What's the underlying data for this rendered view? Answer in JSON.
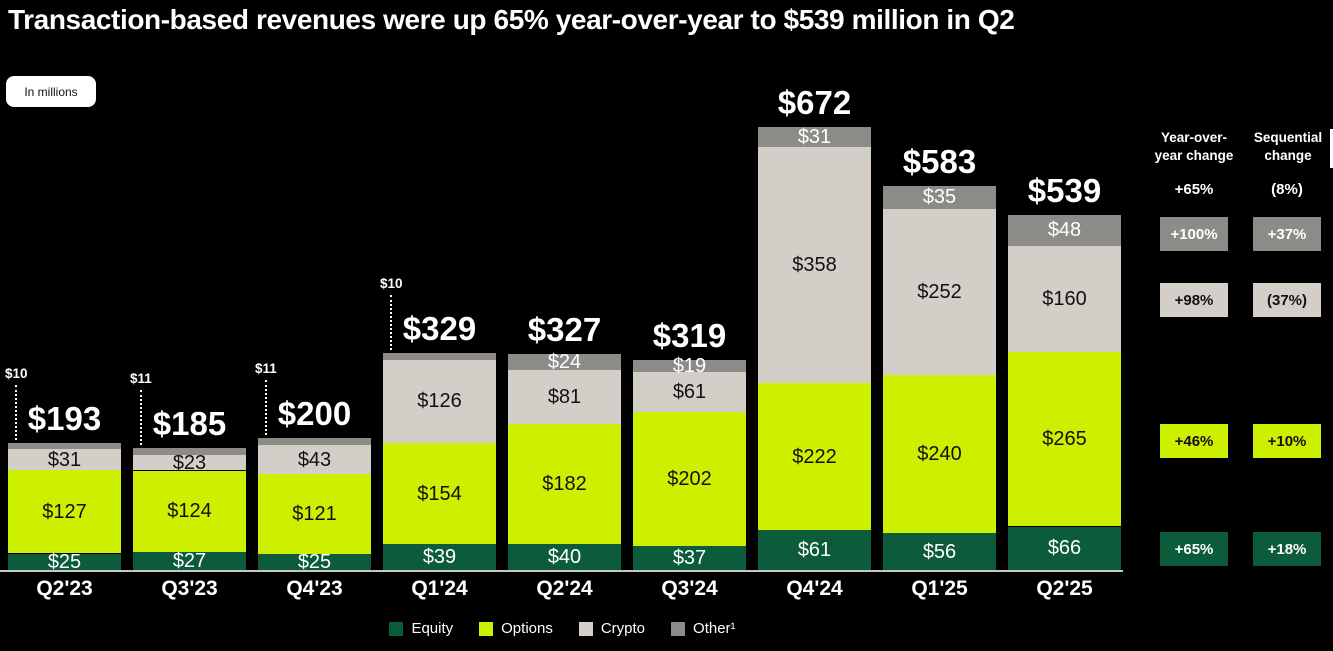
{
  "header": {
    "title": "Transaction-based revenues were up 65% year-over-year to $539 million in Q2",
    "units_label": "In millions"
  },
  "colors": {
    "background": "#000000",
    "equity": "#0c5c3c",
    "options": "#cdf000",
    "crypto": "#d3cfc8",
    "other": "#8c8b88",
    "baseline": "#c6c6c6",
    "text_light": "#ffffff",
    "text_dark": "#111111"
  },
  "chart_data": {
    "type": "bar",
    "stacked": true,
    "units": "USD millions",
    "categories": [
      "Q2'23",
      "Q3'23",
      "Q4'23",
      "Q1'24",
      "Q2'24",
      "Q3'24",
      "Q4'24",
      "Q1'25",
      "Q2'25"
    ],
    "series": [
      {
        "name": "Equity",
        "color_key": "equity",
        "label_color": "#ffffff",
        "values": [
          25,
          27,
          25,
          39,
          40,
          37,
          61,
          56,
          66
        ]
      },
      {
        "name": "Options",
        "color_key": "options",
        "label_color": "#111111",
        "values": [
          127,
          124,
          121,
          154,
          182,
          202,
          222,
          240,
          265
        ]
      },
      {
        "name": "Crypto",
        "color_key": "crypto",
        "label_color": "#111111",
        "values": [
          31,
          23,
          43,
          126,
          81,
          61,
          358,
          252,
          160
        ]
      },
      {
        "name": "Other",
        "color_key": "other",
        "label_color": "#ffffff",
        "values": [
          10,
          11,
          11,
          10,
          24,
          19,
          31,
          35,
          48
        ]
      }
    ],
    "totals": [
      "$193",
      "$185",
      "$200",
      "$329",
      "$327",
      "$319",
      "$672",
      "$583",
      "$539"
    ],
    "other_as_callout": [
      true,
      true,
      true,
      true,
      false,
      false,
      false,
      false,
      false
    ],
    "ylim": [
      0,
      672
    ],
    "grid": false,
    "legend_position": "bottom"
  },
  "legend": {
    "items": [
      {
        "label": "Equity",
        "color_key": "equity"
      },
      {
        "label": "Options",
        "color_key": "options"
      },
      {
        "label": "Crypto",
        "color_key": "crypto"
      },
      {
        "label": "Other¹",
        "color_key": "other"
      }
    ]
  },
  "changes": {
    "columns": [
      {
        "header": "Year-over-\nyear change",
        "headline": "+65%"
      },
      {
        "header": "Sequential\nchange",
        "headline": "(8%)"
      }
    ],
    "rows": [
      {
        "segment": "Other",
        "color_key": "other",
        "yoy": "+100%",
        "seq": "+37%"
      },
      {
        "segment": "Crypto",
        "color_key": "crypto",
        "yoy": "+98%",
        "seq": "(37%)"
      },
      {
        "segment": "Options",
        "color_key": "options",
        "yoy": "+46%",
        "seq": "+10%"
      },
      {
        "segment": "Equity",
        "color_key": "equity",
        "yoy": "+65%",
        "seq": "+18%"
      }
    ]
  }
}
